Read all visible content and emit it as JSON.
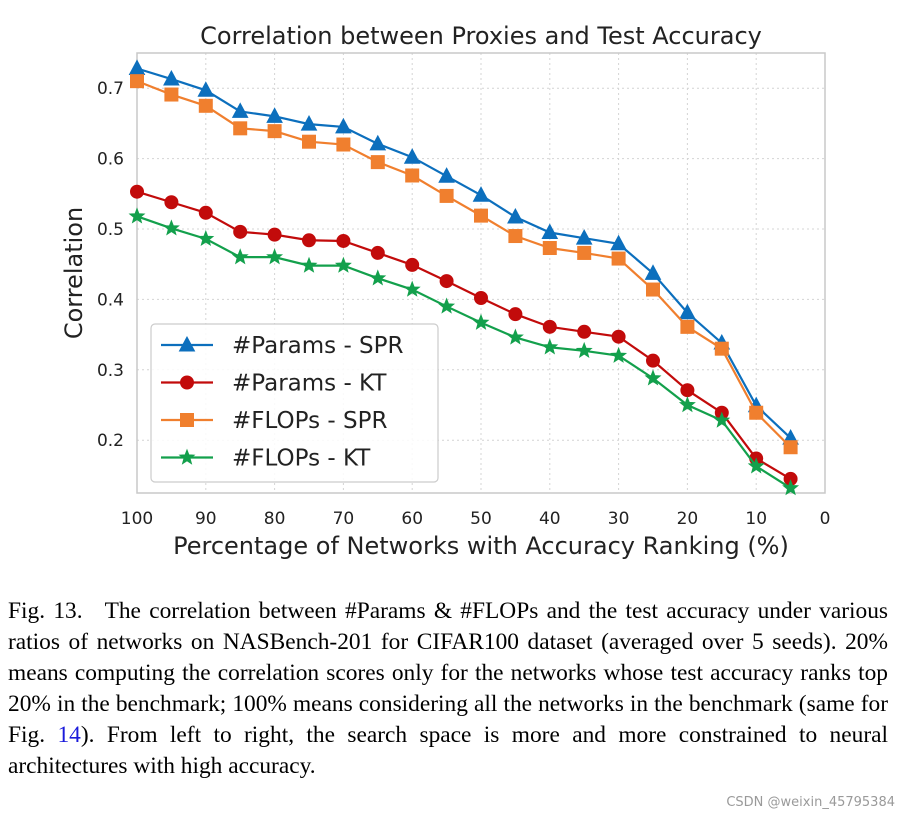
{
  "chart_data": {
    "type": "line",
    "title": "Correlation between Proxies and Test Accuracy",
    "xlabel": "Percentage of Networks with Accuracy Ranking (%)",
    "ylabel": "Correlation",
    "xlim": [
      100,
      0
    ],
    "ylim": [
      0.125,
      0.75
    ],
    "x_ticks": [
      100,
      90,
      80,
      70,
      60,
      50,
      40,
      30,
      20,
      10,
      0
    ],
    "y_ticks": [
      0.2,
      0.3,
      0.4,
      0.5,
      0.6,
      0.7
    ],
    "grid": true,
    "legend_position": "lower-left",
    "x": [
      100,
      95,
      90,
      85,
      80,
      75,
      70,
      65,
      60,
      55,
      50,
      45,
      40,
      35,
      30,
      25,
      20,
      15,
      10,
      5
    ],
    "series": [
      {
        "name": "#Params - SPR",
        "marker": "triangle",
        "color": "#0c6fbd",
        "values": [
          0.728,
          0.713,
          0.697,
          0.667,
          0.66,
          0.649,
          0.645,
          0.621,
          0.602,
          0.575,
          0.548,
          0.517,
          0.495,
          0.487,
          0.479,
          0.437,
          0.381,
          0.338,
          0.249,
          0.203
        ]
      },
      {
        "name": "#Params - KT",
        "marker": "circle",
        "color": "#c20b0b",
        "values": [
          0.553,
          0.538,
          0.523,
          0.496,
          0.492,
          0.484,
          0.483,
          0.466,
          0.449,
          0.426,
          0.402,
          0.379,
          0.361,
          0.354,
          0.347,
          0.313,
          0.271,
          0.239,
          0.174,
          0.145
        ]
      },
      {
        "name": "#FLOPs - SPR",
        "marker": "square",
        "color": "#f07f2e",
        "values": [
          0.71,
          0.691,
          0.675,
          0.643,
          0.639,
          0.624,
          0.62,
          0.595,
          0.576,
          0.547,
          0.519,
          0.49,
          0.473,
          0.466,
          0.458,
          0.414,
          0.361,
          0.33,
          0.239,
          0.19
        ]
      },
      {
        "name": "#FLOPs - KT",
        "marker": "star",
        "color": "#13a04c",
        "values": [
          0.518,
          0.501,
          0.486,
          0.46,
          0.46,
          0.448,
          0.448,
          0.43,
          0.414,
          0.39,
          0.367,
          0.346,
          0.332,
          0.327,
          0.32,
          0.288,
          0.25,
          0.228,
          0.163,
          0.132
        ]
      }
    ]
  },
  "caption": {
    "label": "Fig. 13.",
    "text_before_ref": "The correlation between #Params & #FLOPs and the test accuracy under various ratios of networks on NASBench-201 for CIFAR100 dataset (averaged over 5 seeds). 20% means computing the correlation scores only for the networks whose test accuracy ranks top 20% in the benchmark; 100% means considering all the networks in the benchmark (same for Fig. ",
    "ref": "14",
    "text_after_ref": "). From left to right, the search space is more and more constrained to neural architectures with high accuracy."
  },
  "watermark": "CSDN @weixin_45795384"
}
